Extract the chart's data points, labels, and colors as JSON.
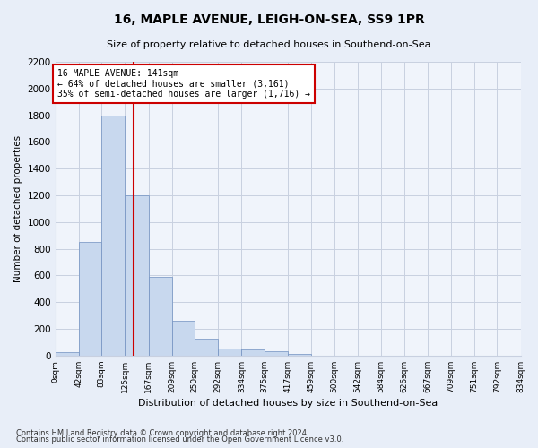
{
  "title": "16, MAPLE AVENUE, LEIGH-ON-SEA, SS9 1PR",
  "subtitle": "Size of property relative to detached houses in Southend-on-Sea",
  "xlabel": "Distribution of detached houses by size in Southend-on-Sea",
  "ylabel": "Number of detached properties",
  "bin_edges": [
    0,
    42,
    83,
    125,
    167,
    209,
    250,
    292,
    334,
    375,
    417,
    459,
    500,
    542,
    584,
    626,
    667,
    709,
    751,
    792,
    834
  ],
  "bar_heights": [
    25,
    850,
    1800,
    1200,
    590,
    260,
    125,
    50,
    45,
    30,
    15,
    0,
    0,
    0,
    0,
    0,
    0,
    0,
    0,
    0
  ],
  "bar_color": "#c8d8ee",
  "bar_edgecolor": "#7090c0",
  "vline_x": 141,
  "vline_color": "#cc0000",
  "annotation_line1": "16 MAPLE AVENUE: 141sqm",
  "annotation_line2": "← 64% of detached houses are smaller (3,161)",
  "annotation_line3": "35% of semi-detached houses are larger (1,716) →",
  "annotation_box_color": "#ffffff",
  "annotation_box_edgecolor": "#cc0000",
  "ylim": [
    0,
    2200
  ],
  "yticks": [
    0,
    200,
    400,
    600,
    800,
    1000,
    1200,
    1400,
    1600,
    1800,
    2000,
    2200
  ],
  "tick_labels": [
    "0sqm",
    "42sqm",
    "83sqm",
    "125sqm",
    "167sqm",
    "209sqm",
    "250sqm",
    "292sqm",
    "334sqm",
    "375sqm",
    "417sqm",
    "459sqm",
    "500sqm",
    "542sqm",
    "584sqm",
    "626sqm",
    "667sqm",
    "709sqm",
    "751sqm",
    "792sqm",
    "834sqm"
  ],
  "footer_line1": "Contains HM Land Registry data © Crown copyright and database right 2024.",
  "footer_line2": "Contains public sector information licensed under the Open Government Licence v3.0.",
  "bg_color": "#e8eef8",
  "plot_bg_color": "#f0f4fb",
  "grid_color": "#c8d0e0"
}
